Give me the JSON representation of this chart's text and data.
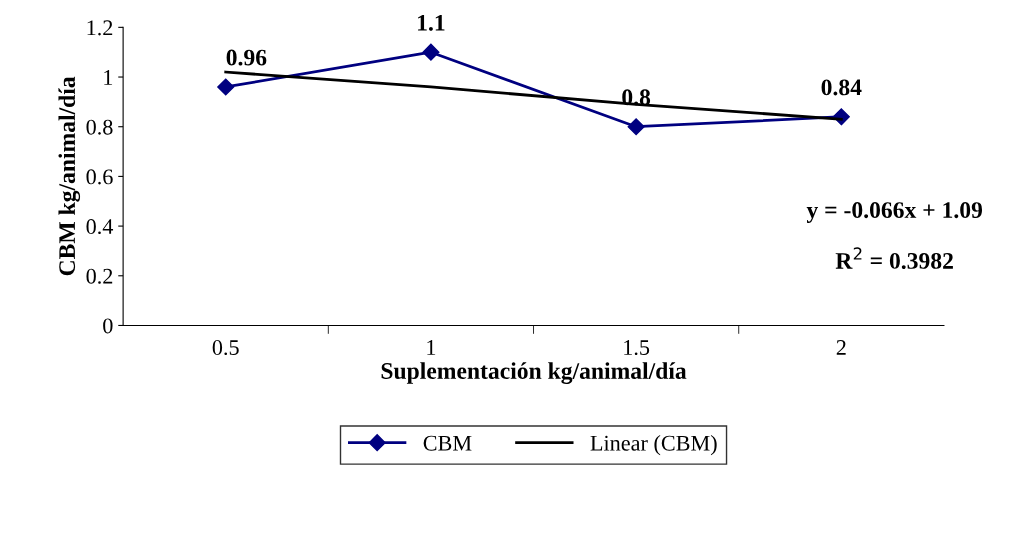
{
  "chart_data": {
    "type": "line",
    "xlabel": "Suplementación kg/animal/día",
    "ylabel": "CBM kg/animal/día",
    "categories": [
      "0.5",
      "1",
      "1.5",
      "2"
    ],
    "series": [
      {
        "name": "CBM",
        "color": "#000080",
        "values": [
          0.96,
          1.1,
          0.8,
          0.84
        ],
        "marker": "diamond",
        "value_labels": [
          "0.96",
          "1.1",
          "0.8",
          "0.84"
        ]
      },
      {
        "name": "Linear (CBM)",
        "color": "#000000",
        "values": [
          1.02,
          0.96,
          0.89,
          0.83
        ],
        "marker": "none"
      }
    ],
    "ylim": [
      0,
      1.2
    ],
    "yticks": [
      0,
      0.2,
      0.4,
      0.6,
      0.8,
      1,
      1.2
    ],
    "annotations": [
      "y = -0.066x + 1.09",
      "R$^{2}$ = 0.3982"
    ],
    "grid": false,
    "legend": "bottom",
    "line_style": "solid"
  }
}
